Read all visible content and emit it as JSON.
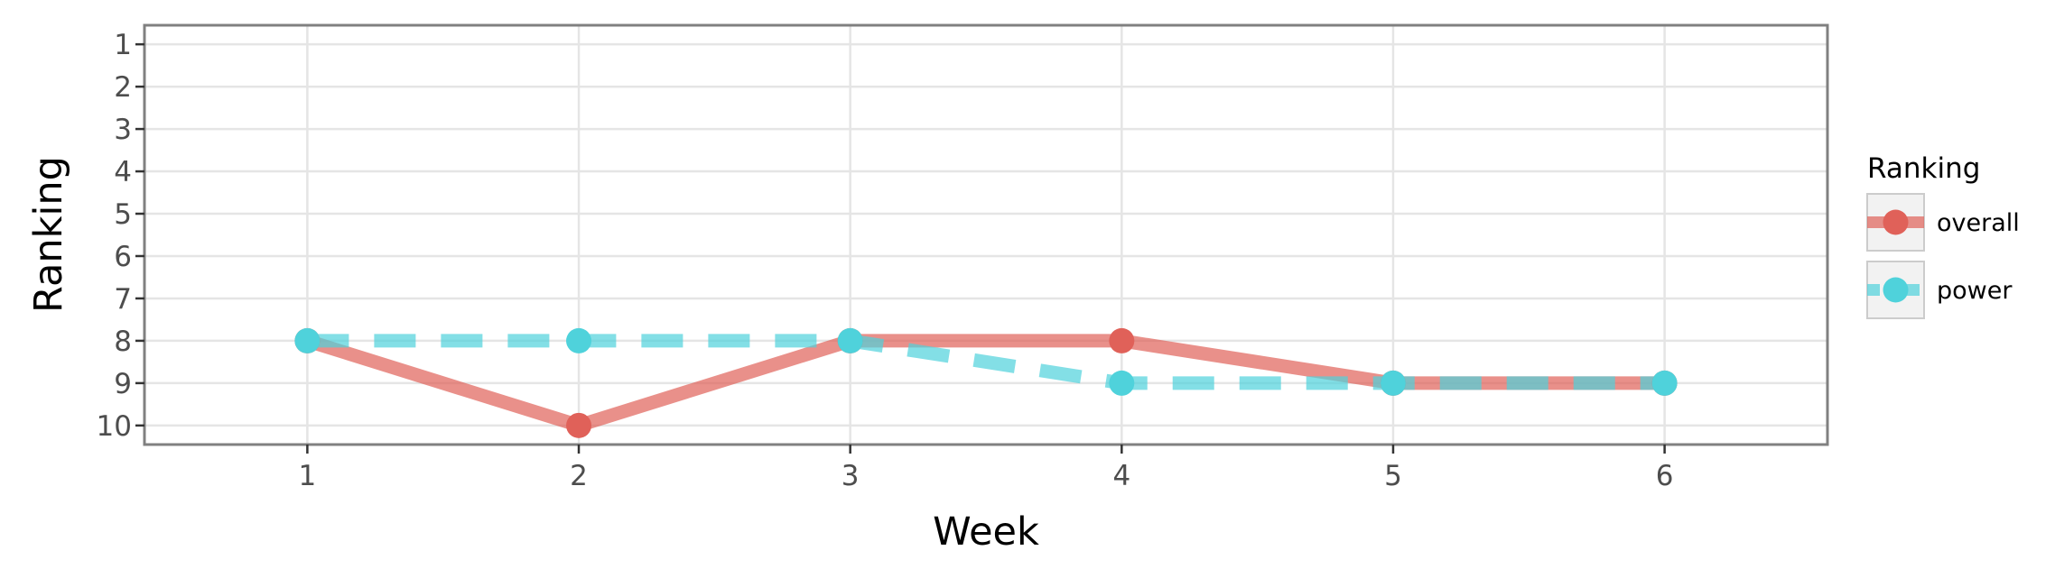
{
  "chart_data": {
    "type": "line",
    "xlabel": "Week",
    "ylabel": "Ranking",
    "x": [
      1,
      2,
      3,
      4,
      5,
      6
    ],
    "xlim": [
      0.4,
      6.6
    ],
    "ylim": [
      10.45,
      0.55
    ],
    "y_reversed": true,
    "xticks": [
      1,
      2,
      3,
      4,
      5,
      6
    ],
    "yticks": [
      1,
      2,
      3,
      4,
      5,
      6,
      7,
      8,
      9,
      10
    ],
    "grid": true,
    "legend": {
      "title": "Ranking",
      "placement": "right"
    },
    "series": [
      {
        "name": "overall",
        "values": [
          8,
          10,
          8,
          8,
          9,
          9
        ],
        "color": "#e06159",
        "line_style": "solid"
      },
      {
        "name": "power",
        "values": [
          8,
          8,
          8,
          9,
          9,
          9
        ],
        "color": "#4fd2db",
        "line_style": "dashed"
      }
    ]
  }
}
